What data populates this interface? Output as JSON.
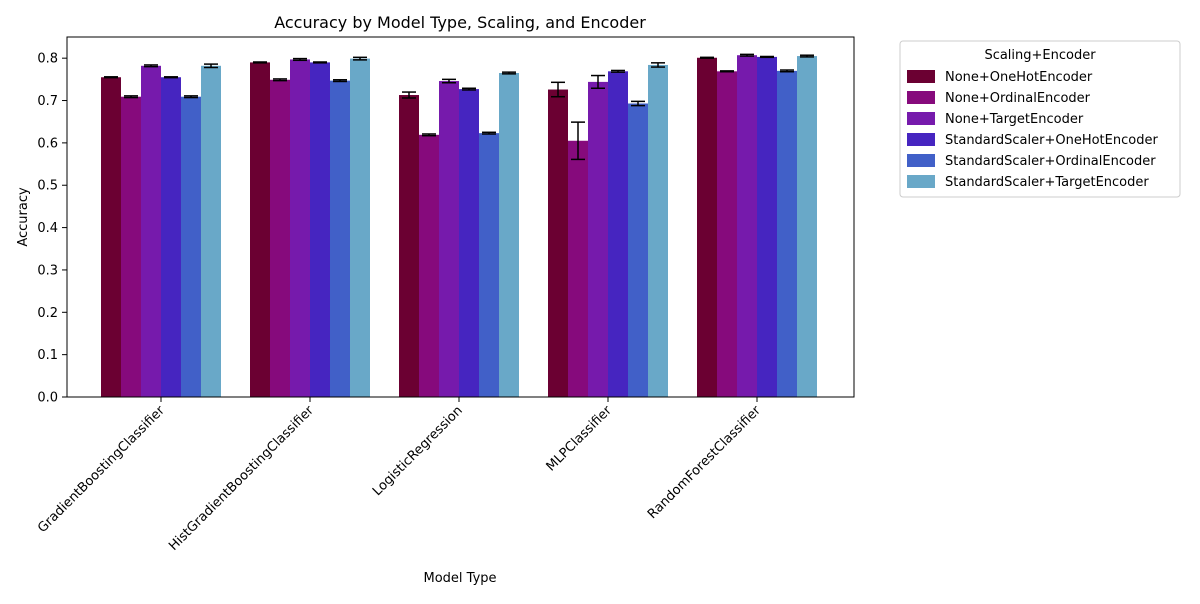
{
  "chart_data": {
    "type": "bar",
    "title": "Accuracy by Model Type, Scaling, and Encoder",
    "xlabel": "Model Type",
    "ylabel": "Accuracy",
    "ylim": [
      0,
      0.85
    ],
    "yticks": [
      "0.0",
      "0.1",
      "0.2",
      "0.3",
      "0.4",
      "0.5",
      "0.6",
      "0.7",
      "0.8"
    ],
    "categories": [
      "GradientBoostingClassifier",
      "HistGradientBoostingClassifier",
      "LogisticRegression",
      "MLPClassifier",
      "RandomForestClassifier"
    ],
    "legend": {
      "title": "Scaling+Encoder",
      "placement": "outside-upper-right"
    },
    "grid": false,
    "series": [
      {
        "name": "None+OneHotEncoder",
        "color": "#6b0032",
        "values": [
          0.755,
          0.79,
          0.713,
          0.726,
          0.801
        ],
        "errors": [
          0.001,
          0.001,
          0.007,
          0.017,
          0.001
        ]
      },
      {
        "name": "None+OrdinalEncoder",
        "color": "#860a7c",
        "values": [
          0.709,
          0.749,
          0.619,
          0.605,
          0.769
        ],
        "errors": [
          0.002,
          0.002,
          0.002,
          0.044,
          0.001
        ]
      },
      {
        "name": "None+TargetEncoder",
        "color": "#761aac",
        "values": [
          0.782,
          0.797,
          0.746,
          0.744,
          0.807
        ],
        "errors": [
          0.002,
          0.002,
          0.004,
          0.015,
          0.002
        ]
      },
      {
        "name": "StandardScaler+OneHotEncoder",
        "color": "#4625c0",
        "values": [
          0.755,
          0.79,
          0.727,
          0.769,
          0.803
        ],
        "errors": [
          0.001,
          0.001,
          0.002,
          0.002,
          0.001
        ]
      },
      {
        "name": "StandardScaler+OrdinalEncoder",
        "color": "#4160c8",
        "values": [
          0.709,
          0.747,
          0.623,
          0.693,
          0.77
        ],
        "errors": [
          0.002,
          0.002,
          0.002,
          0.005,
          0.002
        ]
      },
      {
        "name": "StandardScaler+TargetEncoder",
        "color": "#69a8c8",
        "values": [
          0.782,
          0.799,
          0.765,
          0.784,
          0.805
        ],
        "errors": [
          0.004,
          0.003,
          0.002,
          0.005,
          0.002
        ]
      }
    ]
  }
}
